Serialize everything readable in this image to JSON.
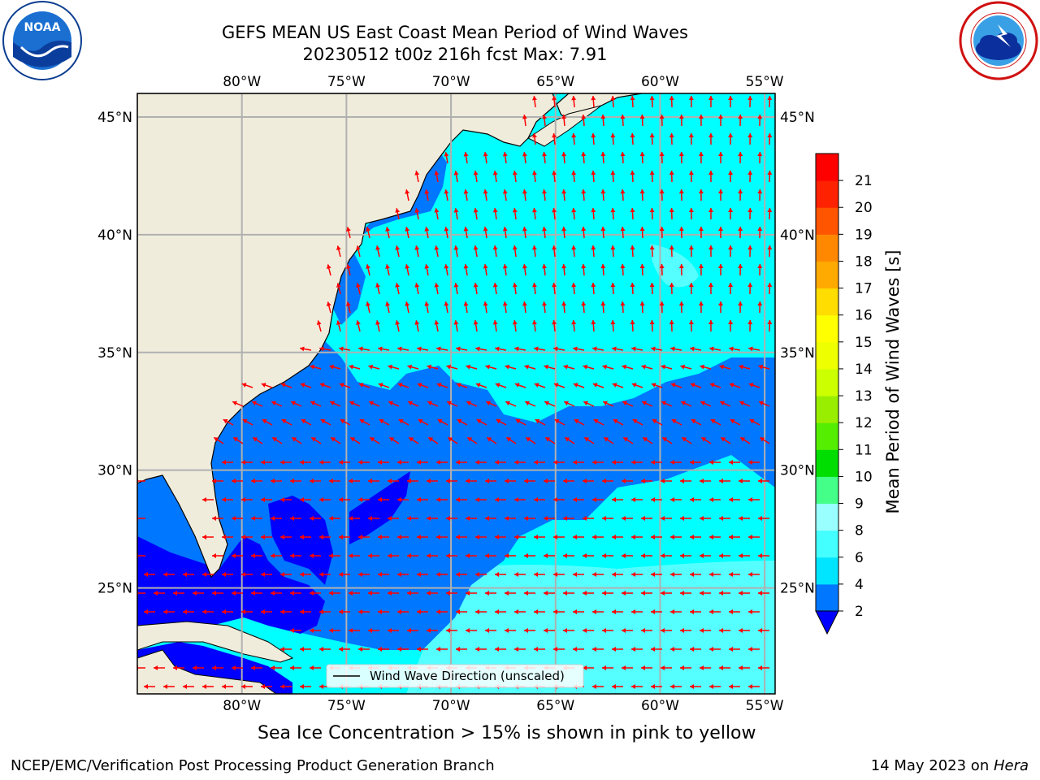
{
  "header": {
    "title_line1": "GEFS MEAN US East Coast Mean Period of Wind Waves",
    "title_line2": "20230512 t00z 216h fcst   Max: 7.91"
  },
  "logos": {
    "left": {
      "name": "noaa-logo",
      "text": "NOAA",
      "ring_text": "NATIONAL OCEANIC AND ATMOSPHERIC ADMINISTRATION · U.S. DEPARTMENT OF COMMERCE"
    },
    "right": {
      "name": "nws-logo",
      "ring_text": "NATIONAL WEATHER SERVICE"
    }
  },
  "map": {
    "lon_ticks": [
      "80°W",
      "75°W",
      "70°W",
      "65°W",
      "60°W",
      "55°W"
    ],
    "lat_ticks": [
      "45°N",
      "40°N",
      "35°N",
      "30°N",
      "25°N"
    ],
    "lon_values": [
      -80,
      -75,
      -70,
      -65,
      -60,
      -55
    ],
    "lat_values": [
      45,
      40,
      35,
      30,
      25
    ],
    "lon_range": [
      -85,
      -54.5
    ],
    "lat_range": [
      20.5,
      46
    ],
    "legend_label": "Wind Wave Direction (unscaled)",
    "arrow_color": "#ff0000",
    "land_color": "#efecdc",
    "grid_color": "#b0b0b0"
  },
  "colorbar": {
    "label": "Mean Period of Wind Waves [s]",
    "ticks": [
      "2",
      "4",
      "6",
      "8",
      "9",
      "10",
      "11",
      "12",
      "13",
      "14",
      "15",
      "16",
      "17",
      "18",
      "19",
      "20",
      "21"
    ],
    "colors": [
      "#0077ff",
      "#00e5ff",
      "#44ffff",
      "#99ffff",
      "#44ff88",
      "#00dd00",
      "#55ee00",
      "#99ee00",
      "#ccff00",
      "#eeff00",
      "#ffff00",
      "#ffdd00",
      "#ffaa00",
      "#ff8800",
      "#ff5500",
      "#ff2200",
      "#ff0000"
    ],
    "under_color": "#0000ff"
  },
  "notes": {
    "sea_ice": "Sea Ice Concentration > 15% is shown in pink to yellow"
  },
  "footer": {
    "left": "NCEP/EMC/Verification Post Processing Product Generation Branch",
    "date": "14 May 2023 on ",
    "machine": "Hera"
  }
}
